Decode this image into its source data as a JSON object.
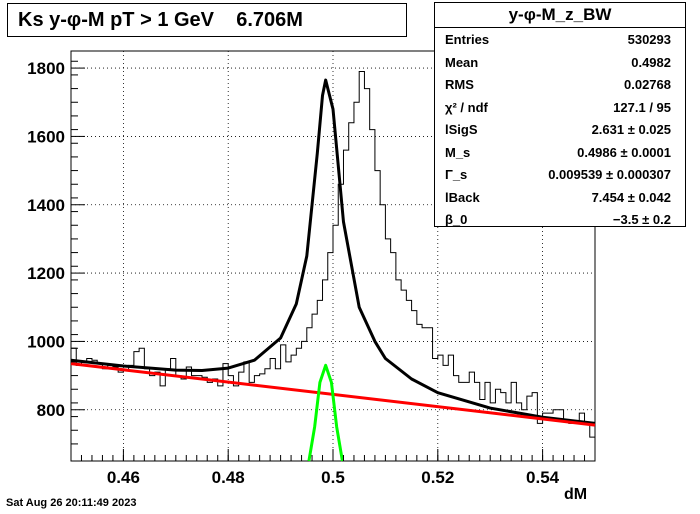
{
  "title": "Ks y-φ-M pT > 1 GeV    6.706M",
  "stats": {
    "title": "y-φ-M_z_BW",
    "rows": [
      {
        "label": "Entries",
        "value": "530293"
      },
      {
        "label": "Mean",
        "value": "0.4982"
      },
      {
        "label": "RMS",
        "value": "0.02768"
      },
      {
        "label": "χ² / ndf",
        "value": "127.1 / 95"
      },
      {
        "label": "lSigS",
        "value": "2.631 ± 0.025"
      },
      {
        "label": "M_s",
        "value": "0.4986 ± 0.0001"
      },
      {
        "label": "Γ_s",
        "value": "0.009539 ± 0.000307"
      },
      {
        "label": "lBack",
        "value": "7.454 ± 0.042"
      },
      {
        "label": "β_0",
        "value": "−3.5 ± 0.2"
      }
    ]
  },
  "footer": "Sat Aug 26 20:11:49 2023",
  "colors": {
    "histogram": "#000000",
    "total_fit": "#000000",
    "background_fit": "#ff0000",
    "signal_fit": "#00ff00"
  },
  "chart_data": {
    "type": "line",
    "xlabel": "dM",
    "ylabel": "",
    "xlim": [
      0.45,
      0.55
    ],
    "ylim": [
      650,
      1850
    ],
    "x_ticks": [
      "0.46",
      "0.48",
      "0.5",
      "0.52",
      "0.54"
    ],
    "y_ticks": [
      "800",
      "1000",
      "1200",
      "1400",
      "1600",
      "1800"
    ],
    "grid": true,
    "histogram": {
      "bin_width": 0.001,
      "x_start": 0.45,
      "values": [
        980,
        930,
        940,
        950,
        945,
        935,
        920,
        930,
        925,
        910,
        915,
        930,
        970,
        980,
        920,
        900,
        910,
        870,
        920,
        950,
        900,
        890,
        925,
        900,
        900,
        895,
        880,
        890,
        870,
        935,
        900,
        870,
        910,
        940,
        880,
        900,
        905,
        920,
        950,
        920,
        990,
        940,
        960,
        980,
        1000,
        1040,
        1080,
        1120,
        1180,
        1260,
        1340,
        1460,
        1560,
        1640,
        1700,
        1790,
        1740,
        1620,
        1500,
        1400,
        1300,
        1260,
        1180,
        1150,
        1120,
        1090,
        1050,
        1040,
        1040,
        950,
        960,
        930,
        960,
        900,
        880,
        880,
        910,
        880,
        830,
        880,
        820,
        860,
        850,
        820,
        880,
        820,
        800,
        840,
        850,
        760,
        790,
        790,
        800,
        800,
        770,
        760,
        760,
        790,
        760,
        720
      ]
    },
    "series": [
      {
        "color": "#000000",
        "type": "fit_total",
        "points": [
          [
            0.45,
            945
          ],
          [
            0.46,
            928
          ],
          [
            0.47,
            916
          ],
          [
            0.475,
            915
          ],
          [
            0.48,
            922
          ],
          [
            0.485,
            945
          ],
          [
            0.49,
            1010
          ],
          [
            0.493,
            1110
          ],
          [
            0.495,
            1250
          ],
          [
            0.497,
            1550
          ],
          [
            0.498,
            1720
          ],
          [
            0.4986,
            1765
          ],
          [
            0.5,
            1680
          ],
          [
            0.502,
            1350
          ],
          [
            0.505,
            1100
          ],
          [
            0.508,
            1000
          ],
          [
            0.51,
            950
          ],
          [
            0.515,
            890
          ],
          [
            0.52,
            850
          ],
          [
            0.53,
            805
          ],
          [
            0.54,
            778
          ],
          [
            0.55,
            760
          ]
        ]
      },
      {
        "color": "#ff0000",
        "type": "fit_background",
        "points": [
          [
            0.45,
            935
          ],
          [
            0.55,
            755
          ]
        ]
      },
      {
        "color": "#00ff00",
        "type": "fit_signal",
        "points": [
          [
            0.4954,
            650
          ],
          [
            0.4965,
            750
          ],
          [
            0.4975,
            880
          ],
          [
            0.4986,
            930
          ],
          [
            0.4997,
            880
          ],
          [
            0.5007,
            750
          ],
          [
            0.5018,
            650
          ]
        ]
      }
    ]
  }
}
